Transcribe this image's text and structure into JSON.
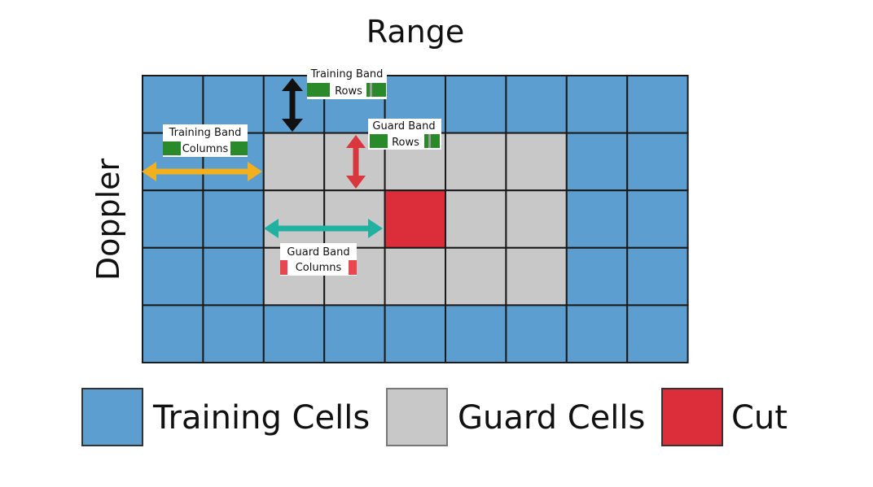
{
  "axes": {
    "top": "Range",
    "left": "Doppler"
  },
  "grid": {
    "rows": 5,
    "cols": 9,
    "cells": [
      [
        "T",
        "T",
        "T",
        "T",
        "T",
        "T",
        "T",
        "T",
        "T"
      ],
      [
        "T",
        "T",
        "G",
        "G",
        "G",
        "G",
        "G",
        "T",
        "T"
      ],
      [
        "T",
        "T",
        "G",
        "G",
        "C",
        "G",
        "G",
        "T",
        "T"
      ],
      [
        "T",
        "T",
        "G",
        "G",
        "G",
        "G",
        "G",
        "T",
        "T"
      ],
      [
        "T",
        "T",
        "T",
        "T",
        "T",
        "T",
        "T",
        "T",
        "T"
      ]
    ]
  },
  "annotations": {
    "training_band_rows": [
      "Training Band",
      "Rows"
    ],
    "training_band_columns": [
      "Training Band",
      "Columns"
    ],
    "guard_band_rows": [
      "Guard Band",
      "Rows"
    ],
    "guard_band_columns": [
      "Guard Band",
      "Columns"
    ]
  },
  "legend": [
    {
      "key": "T",
      "label": "Training Cells"
    },
    {
      "key": "G",
      "label": "Guard Cells"
    },
    {
      "key": "C",
      "label": "Cut"
    }
  ],
  "colors": {
    "training": "#5b9ecf",
    "guard": "#c8c8c8",
    "cut": "#db2e3a",
    "gridline": "#1a1a1a",
    "tag_green": "#2a8a2a",
    "tag_red": "#e8474f",
    "arrow_black": "#111111",
    "arrow_orange": "#f2b01e",
    "arrow_red": "#d9363e",
    "arrow_teal": "#22b0a0"
  }
}
